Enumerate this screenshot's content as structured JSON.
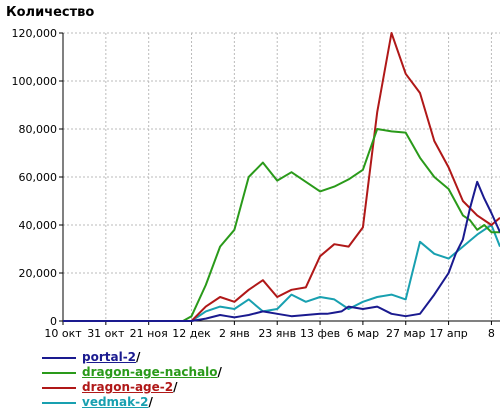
{
  "chart_data": {
    "type": "line",
    "ylabel": "Количество",
    "ylim": [
      0,
      120000
    ],
    "yticks": [
      0,
      20000,
      40000,
      60000,
      80000,
      100000,
      120000
    ],
    "ytick_labels": [
      "0",
      "20,000",
      "40,000",
      "60,000",
      "80,000",
      "100,000",
      "120,000"
    ],
    "x_tick_positions": [
      0,
      3,
      6,
      9,
      12,
      15,
      18,
      21,
      24,
      27,
      30
    ],
    "x_tick_labels": [
      "10 окт",
      "31 окт",
      "21 ноя",
      "12 дек",
      "2 янв",
      "23 янв",
      "13 фев",
      "6 мар",
      "27 мар",
      "17 апр",
      "8"
    ],
    "xlim": [
      0,
      30.6
    ],
    "grid": true,
    "legend": "bottom-left",
    "series": [
      {
        "name": "portal-2",
        "color": "#1a1a8f",
        "x": [
          0,
          9,
          10,
          11,
          11.5,
          12,
          12.5,
          13,
          14,
          15,
          16,
          17,
          18,
          18.5,
          19,
          19.5,
          20,
          21,
          22,
          23,
          24,
          25,
          26,
          27,
          27.5,
          28,
          28.5,
          29,
          29.5,
          30,
          30.6
        ],
        "values": [
          0,
          0,
          1000,
          2500,
          2000,
          1500,
          2000,
          2500,
          4000,
          3000,
          2000,
          2500,
          3000,
          3000,
          3500,
          4000,
          6000,
          5000,
          6000,
          3000,
          2000,
          3000,
          11000,
          20000,
          28000,
          34000,
          47000,
          58000,
          51000,
          45000,
          37000
        ]
      },
      {
        "name": "dragon-age-nachalo",
        "color": "#2a9a1a",
        "x": [
          0,
          8.4,
          9,
          10,
          11,
          12,
          13,
          14,
          15,
          16,
          17,
          18,
          19,
          20,
          21,
          22,
          23,
          24,
          25,
          26,
          27,
          28,
          28.5,
          29,
          29.5,
          30,
          30.6
        ],
        "values": [
          0,
          0,
          2000,
          15000,
          31000,
          38000,
          60000,
          66000,
          58500,
          62000,
          58000,
          54000,
          56000,
          59000,
          63000,
          80000,
          79000,
          78500,
          68000,
          60000,
          55000,
          44000,
          42000,
          38000,
          40000,
          37000,
          37000
        ]
      },
      {
        "name": "dragon-age-2",
        "color": "#b01818",
        "x": [
          0,
          9,
          10,
          11,
          12,
          13,
          14,
          15,
          16,
          17,
          18,
          19,
          20,
          21,
          22,
          23,
          24,
          25,
          26,
          27,
          28,
          29,
          30,
          30.6
        ],
        "values": [
          0,
          0,
          6000,
          10000,
          8000,
          13000,
          17000,
          10000,
          13000,
          14000,
          27000,
          32000,
          31000,
          39000,
          87000,
          120000,
          103000,
          95000,
          75000,
          64000,
          50000,
          44000,
          40000,
          43000
        ]
      },
      {
        "name": "vedmak-2",
        "color": "#18a0b0",
        "x": [
          0,
          9,
          10,
          11,
          12,
          13,
          14,
          15,
          16,
          17,
          18,
          19,
          20,
          21,
          22,
          23,
          24,
          25,
          26,
          27,
          28,
          29,
          30,
          30.6
        ],
        "values": [
          0,
          0,
          4000,
          6000,
          5000,
          9000,
          4000,
          5000,
          11000,
          8000,
          10000,
          9000,
          5000,
          8000,
          10000,
          11000,
          9000,
          33000,
          28000,
          26000,
          31000,
          36000,
          40000,
          31000
        ]
      }
    ]
  }
}
